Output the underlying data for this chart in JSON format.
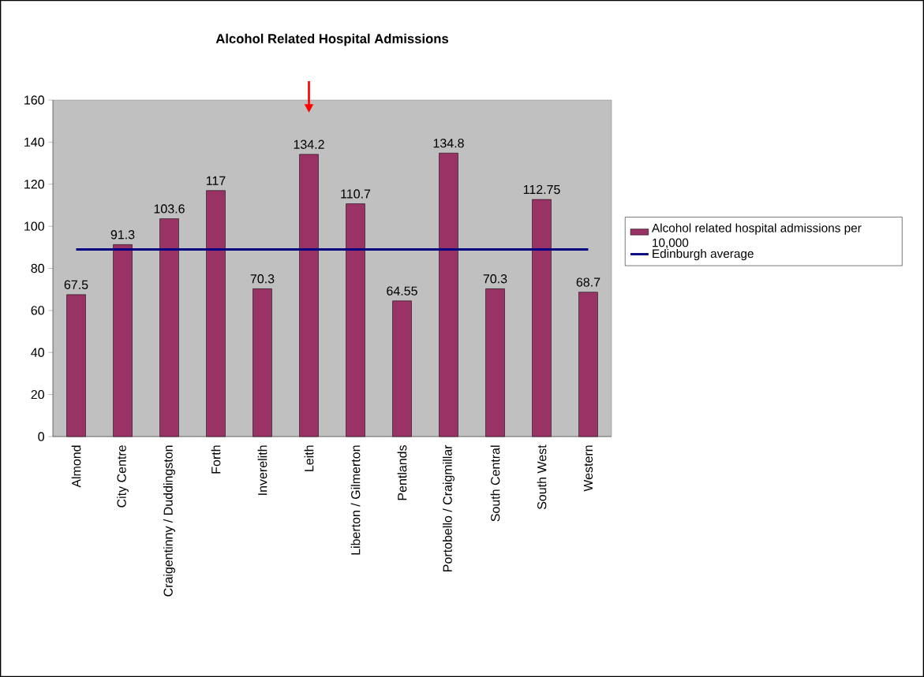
{
  "chart_data": {
    "type": "bar",
    "title": "Alcohol Related Hospital Admissions",
    "categories": [
      "Almond",
      "City Centre",
      "Craigentinny / Duddingston",
      "Forth",
      "Inverelith",
      "Leith",
      "Liberton / Gilmerton",
      "Pentlands",
      "Portobello / Craigmillar",
      "South Central",
      "South West",
      "Western"
    ],
    "series": [
      {
        "name": "Alcohol related hospital admissions per 10,000",
        "color": "#993366",
        "values": [
          67.5,
          91.3,
          103.6,
          117,
          70.3,
          134.2,
          110.7,
          64.55,
          134.8,
          70.3,
          112.75,
          68.7
        ],
        "value_labels": [
          "67.5",
          "91.3",
          "103.6",
          "117",
          "70.3",
          "134.2",
          "110.7",
          "64.55",
          "134.8",
          "70.3",
          "112.75",
          "68.7"
        ]
      },
      {
        "name": "Edinburgh average",
        "type": "line",
        "color": "#000080",
        "values": [
          89,
          89,
          89,
          89,
          89,
          89,
          89,
          89,
          89,
          89,
          89,
          89
        ]
      }
    ],
    "ylim": [
      0,
      160
    ],
    "yticks": [
      0,
      20,
      40,
      60,
      80,
      100,
      120,
      140,
      160
    ],
    "legend": "right",
    "grid": false
  }
}
